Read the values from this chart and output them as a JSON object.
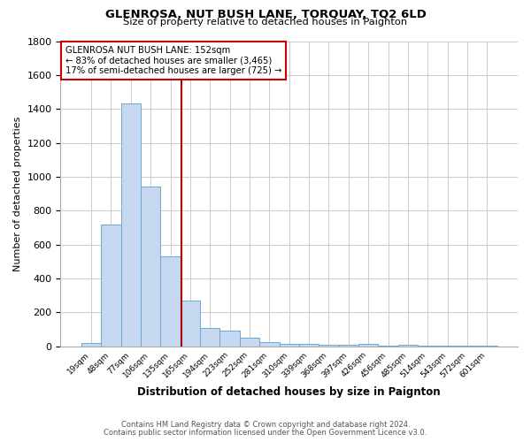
{
  "title": "GLENROSA, NUT BUSH LANE, TORQUAY, TQ2 6LD",
  "subtitle": "Size of property relative to detached houses in Paignton",
  "xlabel": "Distribution of detached houses by size in Paignton",
  "ylabel": "Number of detached properties",
  "categories": [
    "19sqm",
    "48sqm",
    "77sqm",
    "106sqm",
    "135sqm",
    "165sqm",
    "194sqm",
    "223sqm",
    "252sqm",
    "281sqm",
    "310sqm",
    "339sqm",
    "368sqm",
    "397sqm",
    "426sqm",
    "456sqm",
    "485sqm",
    "514sqm",
    "543sqm",
    "572sqm",
    "601sqm"
  ],
  "values": [
    20,
    720,
    1430,
    940,
    530,
    270,
    110,
    95,
    50,
    25,
    15,
    12,
    10,
    8,
    12,
    5,
    8,
    3,
    5,
    3,
    5
  ],
  "bar_color": "#c5d8ef",
  "bar_edge_color": "#6aaad4",
  "ref_line_label": "GLENROSA NUT BUSH LANE: 152sqm",
  "ref_line_smaller": "← 83% of detached houses are smaller (3,465)",
  "ref_line_larger": "17% of semi-detached houses are larger (725) →",
  "ref_line_color": "#aa0000",
  "ref_line_x": 4.58,
  "ylim": [
    0,
    1800
  ],
  "yticks": [
    0,
    200,
    400,
    600,
    800,
    1000,
    1200,
    1400,
    1600,
    1800
  ],
  "footnote1": "Contains HM Land Registry data © Crown copyright and database right 2024.",
  "footnote2": "Contains public sector information licensed under the Open Government Licence v3.0.",
  "bg_color": "#ffffff",
  "plot_bg_color": "#ffffff",
  "grid_color": "#cccccc"
}
